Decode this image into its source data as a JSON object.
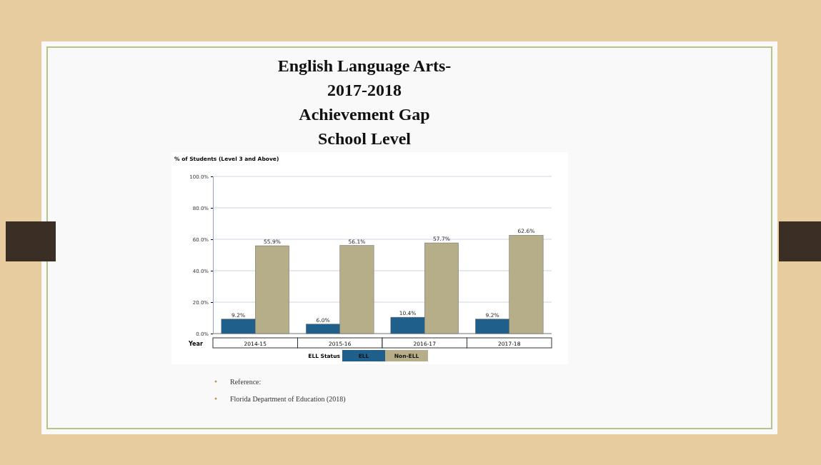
{
  "chart_data": {
    "type": "bar",
    "title": "English Language Arts-\n2017-2018\nAchievement Gap\nSchool Level",
    "ylabel": "% of Students (Level 3 and Above)",
    "xlabel": "Year",
    "legend_title": "ELL Status",
    "legend": "bottom",
    "grid": "y",
    "categories": [
      "2014-15",
      "2015-16",
      "2016-17",
      "2017-18"
    ],
    "series": [
      {
        "name": "ELL",
        "color": "#1f5f8b",
        "values": [
          9.2,
          6.0,
          10.4,
          9.2
        ],
        "value_labels": [
          "9.2%",
          "6.0%",
          "10.4%",
          "9.2%"
        ]
      },
      {
        "name": "Non-ELL",
        "color": "#b5ae88",
        "values": [
          55.9,
          56.1,
          57.7,
          62.6
        ],
        "value_labels": [
          "55.9%",
          "56.1%",
          "57.7%",
          "62.6%"
        ]
      }
    ],
    "ylim": [
      0,
      100
    ],
    "yticks": [
      {
        "value": 0,
        "label": "0.0%"
      },
      {
        "value": 20,
        "label": "20.0%"
      },
      {
        "value": 40,
        "label": "40.0%"
      },
      {
        "value": 60,
        "label": "60.0%"
      },
      {
        "value": 80,
        "label": "80.0%"
      },
      {
        "value": 100,
        "label": "100.0%"
      }
    ],
    "annotations": [
      "Reference:",
      "Florida Department of Education (2018)"
    ]
  }
}
